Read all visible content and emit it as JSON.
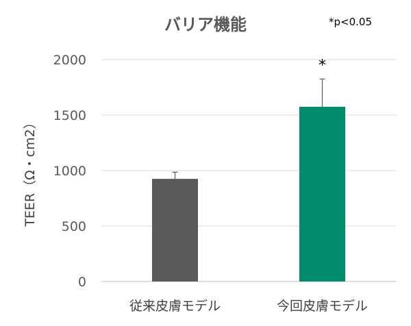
{
  "chart_data": {
    "type": "bar",
    "title": "バリア機能",
    "note": "*p<0.05",
    "ylabel": "TEER（Ω・cm2）",
    "xlabel": "",
    "categories": [
      "従来皮膚モデル",
      "今回皮膚モデル"
    ],
    "values": [
      925,
      1575
    ],
    "error_upper": [
      60,
      250
    ],
    "significance": [
      "",
      "*"
    ],
    "ylim": [
      0,
      2000
    ],
    "yticks": [
      0,
      500,
      1000,
      1500,
      2000
    ],
    "ytick_labels": [
      "0",
      "500",
      "1000",
      "1500",
      "2000"
    ],
    "grid": true,
    "legend": "none",
    "colors": [
      "#595959",
      "#008c6a"
    ]
  }
}
